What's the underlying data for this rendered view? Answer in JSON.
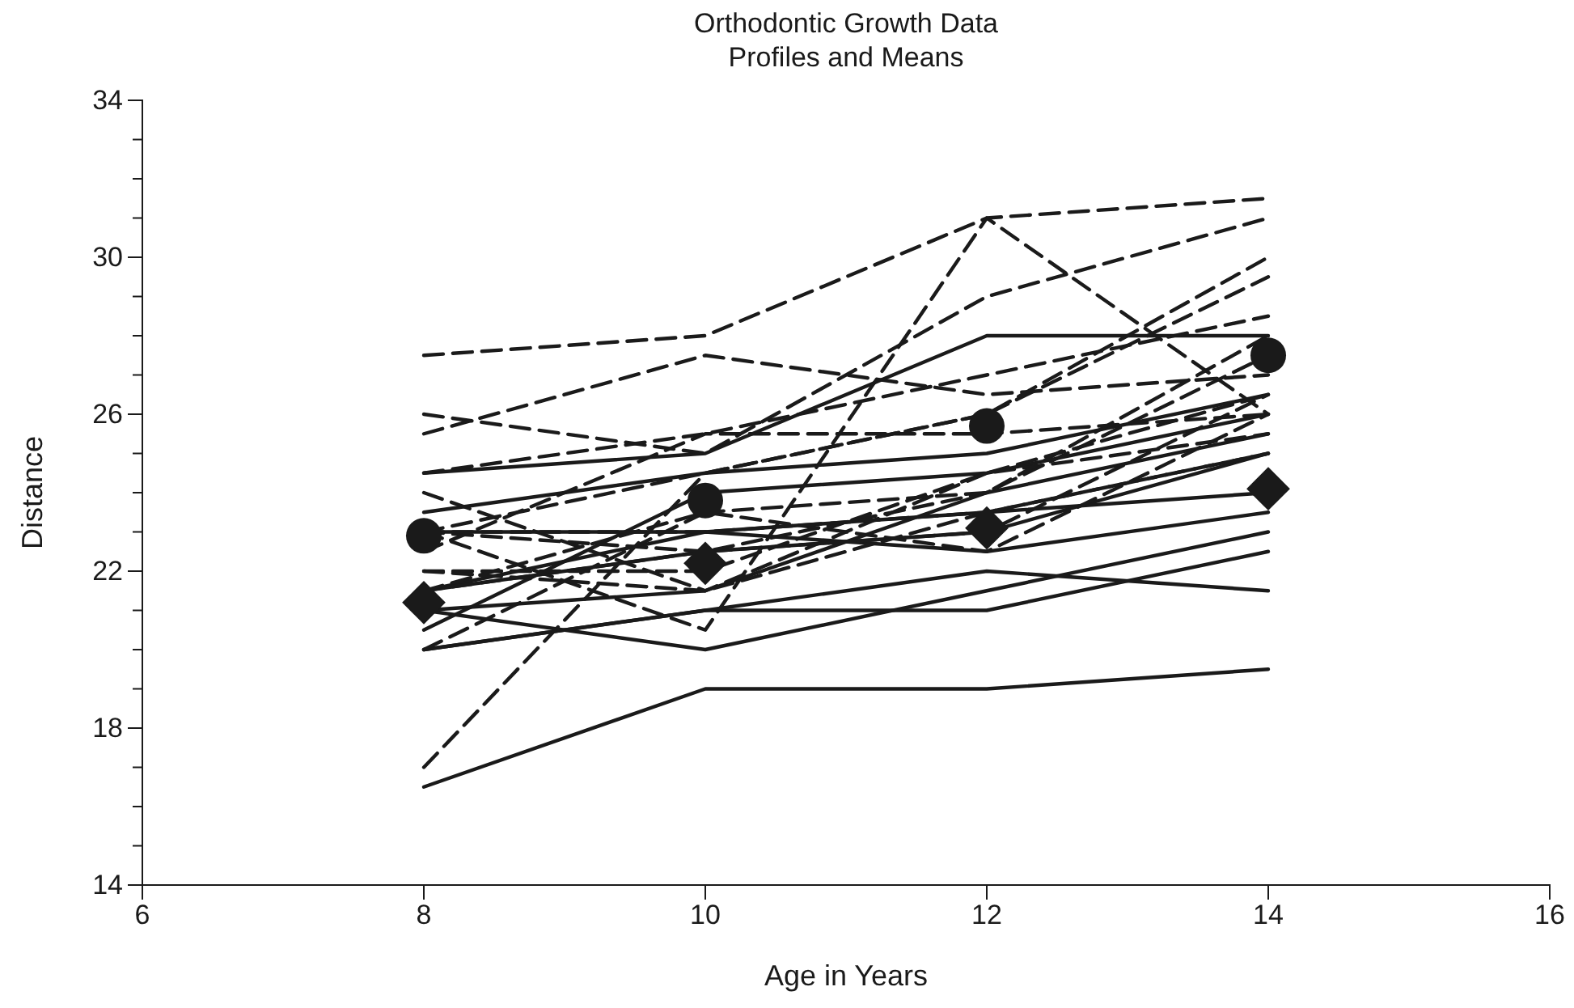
{
  "chart_data": {
    "type": "line",
    "title": "Orthodontic Growth Data",
    "subtitle": "Profiles and Means",
    "xlabel": "Age in Years",
    "ylabel": "Distance",
    "x": [
      8,
      10,
      12,
      14
    ],
    "xlim": [
      6,
      16
    ],
    "xticks": [
      6,
      8,
      10,
      12,
      14,
      16
    ],
    "ylim": [
      14,
      34
    ],
    "yticks": [
      14,
      {
        "value": 15,
        "label": null
      },
      {
        "value": 16,
        "label": null
      },
      {
        "value": 17,
        "label": null
      },
      18,
      {
        "value": 19,
        "label": null
      },
      {
        "value": 20,
        "label": null
      },
      {
        "value": 21,
        "label": null
      },
      22,
      {
        "value": 23,
        "label": null
      },
      {
        "value": 24,
        "label": null
      },
      {
        "value": 25,
        "label": null
      },
      26,
      {
        "value": 27,
        "label": null
      },
      {
        "value": 28,
        "label": null
      },
      {
        "value": 29,
        "label": null
      },
      30,
      {
        "value": 31,
        "label": null
      },
      {
        "value": 32,
        "label": null
      },
      {
        "value": 33,
        "label": null
      },
      34
    ],
    "grid": false,
    "marker": "none",
    "series": [
      {
        "color": "#1a1a1a",
        "line_style": "solid",
        "values": [
          21,
          20,
          21.5,
          23
        ]
      },
      {
        "color": "#1a1a1a",
        "line_style": "solid",
        "values": [
          21,
          21.5,
          24,
          25.5
        ]
      },
      {
        "color": "#1a1a1a",
        "line_style": "solid",
        "values": [
          20.5,
          24,
          24.5,
          26
        ]
      },
      {
        "color": "#1a1a1a",
        "line_style": "solid",
        "values": [
          23.5,
          24.5,
          25,
          26.5
        ]
      },
      {
        "color": "#1a1a1a",
        "line_style": "solid",
        "values": [
          21.5,
          23,
          22.5,
          23.5
        ]
      },
      {
        "color": "#1a1a1a",
        "line_style": "solid",
        "values": [
          20,
          21,
          21,
          22.5
        ]
      },
      {
        "color": "#1a1a1a",
        "line_style": "solid",
        "values": [
          21.5,
          22.5,
          23,
          25
        ]
      },
      {
        "color": "#1a1a1a",
        "line_style": "solid",
        "values": [
          23,
          23,
          23.5,
          24
        ]
      },
      {
        "color": "#1a1a1a",
        "line_style": "solid",
        "values": [
          20,
          21,
          22,
          21.5
        ]
      },
      {
        "color": "#1a1a1a",
        "line_style": "solid",
        "values": [
          16.5,
          19,
          19,
          19.5
        ]
      },
      {
        "color": "#1a1a1a",
        "line_style": "solid",
        "values": [
          24.5,
          25,
          28,
          28
        ]
      },
      {
        "color": "#1a1a1a",
        "line_style": "dashed",
        "values": [
          26,
          25,
          29,
          31
        ]
      },
      {
        "color": "#1a1a1a",
        "line_style": "dashed",
        "values": [
          21.5,
          22.5,
          23,
          26.5
        ]
      },
      {
        "color": "#1a1a1a",
        "line_style": "dashed",
        "values": [
          23,
          22.5,
          24,
          27.5
        ]
      },
      {
        "color": "#1a1a1a",
        "line_style": "dashed",
        "values": [
          25.5,
          27.5,
          26.5,
          27
        ]
      },
      {
        "color": "#1a1a1a",
        "line_style": "dashed",
        "values": [
          20,
          23.5,
          22.5,
          26
        ]
      },
      {
        "color": "#1a1a1a",
        "line_style": "dashed",
        "values": [
          24.5,
          25.5,
          27,
          28.5
        ]
      },
      {
        "color": "#1a1a1a",
        "line_style": "dashed",
        "values": [
          22,
          22,
          24.5,
          26.5
        ]
      },
      {
        "color": "#1a1a1a",
        "line_style": "dashed",
        "values": [
          24,
          21.5,
          24.5,
          25.5
        ]
      },
      {
        "color": "#1a1a1a",
        "line_style": "dashed",
        "values": [
          23,
          20.5,
          31,
          26
        ]
      },
      {
        "color": "#1a1a1a",
        "line_style": "dashed",
        "values": [
          27.5,
          28,
          31,
          31.5
        ]
      },
      {
        "color": "#1a1a1a",
        "line_style": "dashed",
        "values": [
          23,
          23,
          23.5,
          25
        ]
      },
      {
        "color": "#1a1a1a",
        "line_style": "dashed",
        "values": [
          21.5,
          23.5,
          24,
          28
        ]
      },
      {
        "color": "#1a1a1a",
        "line_style": "dashed",
        "values": [
          17,
          24.5,
          26,
          29.5
        ]
      },
      {
        "color": "#1a1a1a",
        "line_style": "dashed",
        "values": [
          22.5,
          25.5,
          25.5,
          26
        ]
      },
      {
        "color": "#1a1a1a",
        "line_style": "dashed",
        "values": [
          23,
          24.5,
          26,
          30
        ]
      },
      {
        "color": "#1a1a1a",
        "line_style": "dashed",
        "values": [
          22,
          21.5,
          23.5,
          25
        ]
      },
      {
        "type": "scatter",
        "marker": "circle",
        "color": "#1a1a1a",
        "values": [
          22.9,
          23.8,
          25.7,
          27.5
        ]
      },
      {
        "type": "scatter",
        "marker": "diamond",
        "color": "#1a1a1a",
        "values": [
          21.2,
          22.2,
          23.1,
          24.1
        ]
      }
    ]
  }
}
